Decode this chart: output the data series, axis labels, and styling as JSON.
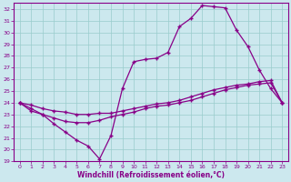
{
  "xlabel": "Windchill (Refroidissement éolien,°C)",
  "bg_color": "#cce8ee",
  "line_color": "#880088",
  "grid_color": "#99cccc",
  "xlim": [
    -0.5,
    23.5
  ],
  "ylim": [
    19,
    32.5
  ],
  "xticks": [
    0,
    1,
    2,
    3,
    4,
    5,
    6,
    7,
    8,
    9,
    10,
    11,
    12,
    13,
    14,
    15,
    16,
    17,
    18,
    19,
    20,
    21,
    22,
    23
  ],
  "yticks": [
    19,
    20,
    21,
    22,
    23,
    24,
    25,
    26,
    27,
    28,
    29,
    30,
    31,
    32
  ],
  "line1_x": [
    0,
    1,
    2,
    3,
    4,
    5,
    6,
    7,
    8,
    9,
    10,
    11,
    12,
    13,
    14,
    15,
    16,
    17,
    18,
    19,
    20,
    21,
    22,
    23
  ],
  "line1_y": [
    24.0,
    23.3,
    23.0,
    22.2,
    21.5,
    20.8,
    20.3,
    19.2,
    21.2,
    25.2,
    27.5,
    27.7,
    27.8,
    28.3,
    30.5,
    31.2,
    32.3,
    32.2,
    32.1,
    30.2,
    28.8,
    26.8,
    25.2,
    24.0
  ],
  "line2_x": [
    0,
    1,
    2,
    3,
    4,
    5,
    6,
    7,
    8,
    9,
    10,
    11,
    12,
    13,
    14,
    15,
    16,
    17,
    18,
    19,
    20,
    21,
    22,
    23
  ],
  "line2_y": [
    24.0,
    23.5,
    23.0,
    22.7,
    22.4,
    22.3,
    22.3,
    22.5,
    22.8,
    23.0,
    23.2,
    23.5,
    23.7,
    23.8,
    24.0,
    24.2,
    24.5,
    24.8,
    25.1,
    25.3,
    25.5,
    25.6,
    25.7,
    24.0
  ],
  "line3_x": [
    0,
    1,
    2,
    3,
    4,
    5,
    6,
    7,
    8,
    9,
    10,
    11,
    12,
    13,
    14,
    15,
    16,
    17,
    18,
    19,
    20,
    21,
    22,
    23
  ],
  "line3_y": [
    24.0,
    23.8,
    23.5,
    23.3,
    23.2,
    23.0,
    23.0,
    23.1,
    23.1,
    23.3,
    23.5,
    23.7,
    23.9,
    24.0,
    24.2,
    24.5,
    24.8,
    25.1,
    25.3,
    25.5,
    25.6,
    25.8,
    25.9,
    24.0
  ]
}
